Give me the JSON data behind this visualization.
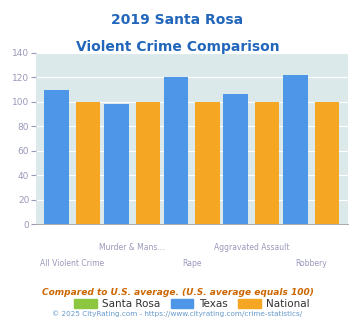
{
  "title_line1": "2019 Santa Rosa",
  "title_line2": "Violent Crime Comparison",
  "categories": [
    "All Violent Crime",
    "Murder & Mans...",
    "Rape",
    "Aggravated Assault",
    "Robbery"
  ],
  "x_labels_top": [
    "",
    "Murder & Mans...",
    "",
    "Aggravated Assault",
    ""
  ],
  "x_labels_bottom": [
    "All Violent Crime",
    "",
    "Rape",
    "",
    "Robbery"
  ],
  "santa_rosa": [
    0,
    0,
    0,
    0,
    0
  ],
  "texas": [
    110,
    98,
    120,
    106,
    122
  ],
  "national": [
    100,
    100,
    100,
    100,
    100
  ],
  "color_santa_rosa": "#8dc63f",
  "color_texas": "#4d96e8",
  "color_national": "#f5a623",
  "ylim": [
    0,
    140
  ],
  "yticks": [
    0,
    20,
    40,
    60,
    80,
    100,
    120,
    140
  ],
  "bg_color": "#dce9eb",
  "title_color": "#2266bb",
  "axis_label_color": "#9999bb",
  "legend_labels": [
    "Santa Rosa",
    "Texas",
    "National"
  ],
  "footer1": "Compared to U.S. average. (U.S. average equals 100)",
  "footer2": "© 2025 CityRating.com - https://www.cityrating.com/crime-statistics/",
  "footer1_color": "#cc6600",
  "footer2_color": "#6699cc"
}
